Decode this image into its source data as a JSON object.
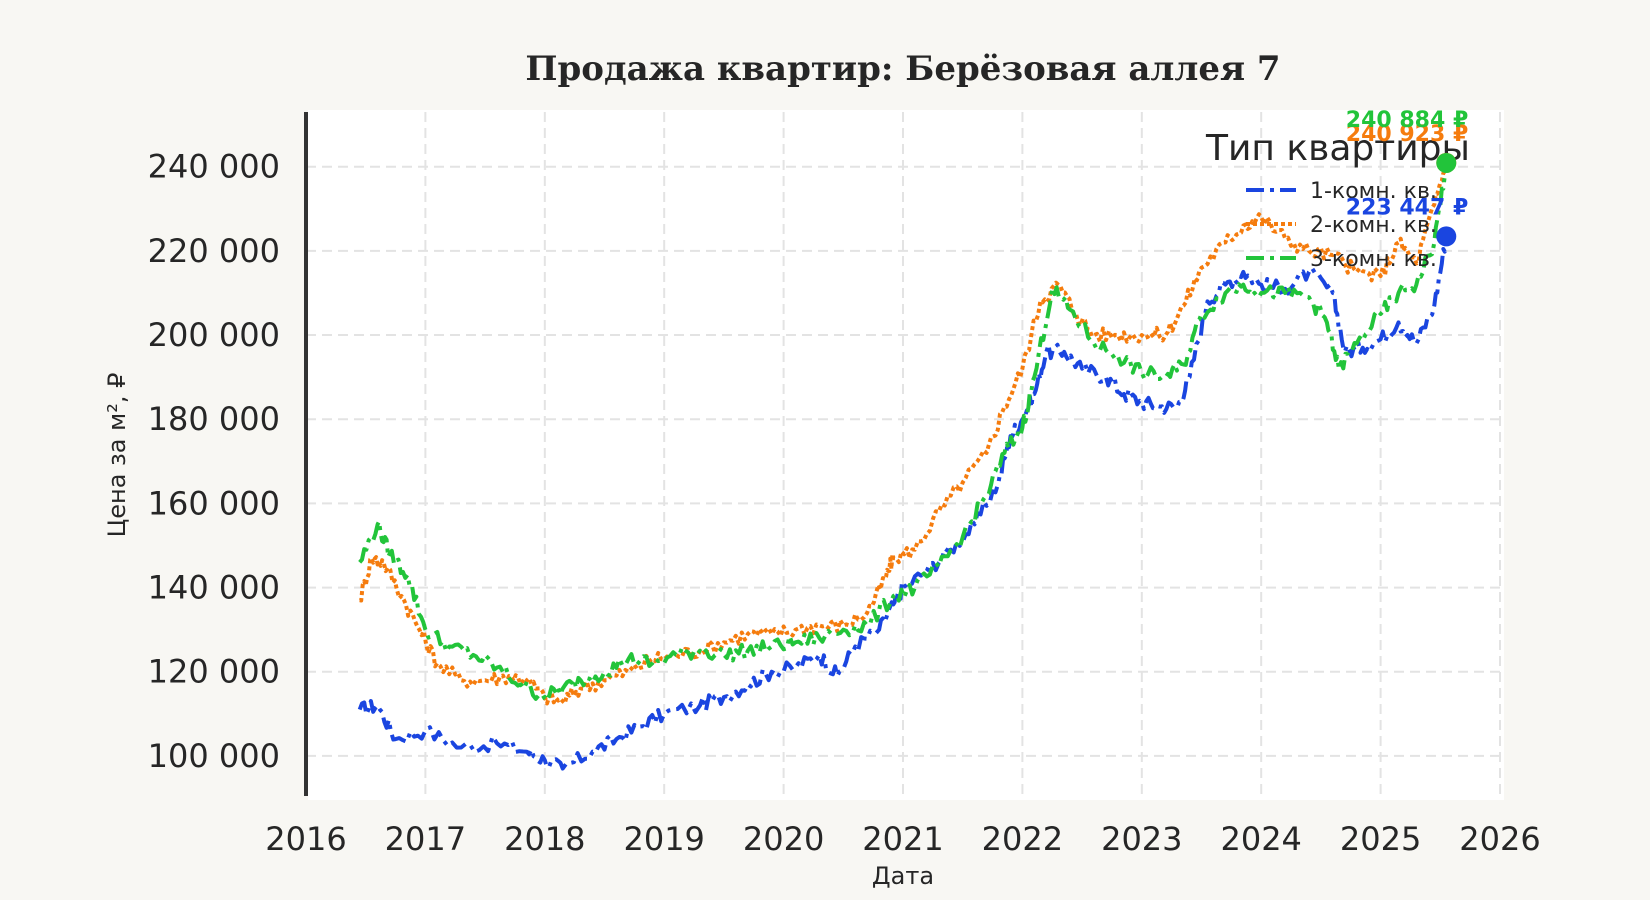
{
  "chart_data": {
    "type": "line",
    "title": "Продажа квартир: Берёзовая аллея 7",
    "xlabel": "Дата",
    "ylabel": "Цена за м², ₽",
    "xlim": [
      2016,
      2026
    ],
    "ylim": [
      90000,
      253000
    ],
    "x_ticks": [
      2016,
      2017,
      2018,
      2019,
      2020,
      2021,
      2022,
      2023,
      2024,
      2025,
      2026
    ],
    "y_ticks": [
      100000,
      120000,
      140000,
      160000,
      180000,
      200000,
      220000,
      240000
    ],
    "y_tick_labels": [
      "100 000",
      "120 000",
      "140 000",
      "160 000",
      "180 000",
      "200 000",
      "220 000",
      "240 000"
    ],
    "x_tick_labels": [
      "2016",
      "2017",
      "2018",
      "2019",
      "2020",
      "2021",
      "2022",
      "2023",
      "2024",
      "2025",
      "2026"
    ],
    "grid": true,
    "legend": {
      "title": "Тип квартиры",
      "position": "top-right"
    },
    "series": [
      {
        "name": "1-комн. кв.",
        "color": "#1a45e0",
        "dash": "dashdot",
        "end_label": "223 447 ₽",
        "points": [
          [
            2016.45,
            111000
          ],
          [
            2016.6,
            112000
          ],
          [
            2016.75,
            104000
          ],
          [
            2017.0,
            106000
          ],
          [
            2017.3,
            102000
          ],
          [
            2017.6,
            103000
          ],
          [
            2017.85,
            101000
          ],
          [
            2018.0,
            99000
          ],
          [
            2018.15,
            97000
          ],
          [
            2018.4,
            101000
          ],
          [
            2018.6,
            104000
          ],
          [
            2018.8,
            107000
          ],
          [
            2019.0,
            110000
          ],
          [
            2019.3,
            112000
          ],
          [
            2019.5,
            114000
          ],
          [
            2019.7,
            117000
          ],
          [
            2019.9,
            120000
          ],
          [
            2020.1,
            121000
          ],
          [
            2020.3,
            124000
          ],
          [
            2020.45,
            119000
          ],
          [
            2020.6,
            126000
          ],
          [
            2020.8,
            130000
          ],
          [
            2020.92,
            136000
          ],
          [
            2021.0,
            140000
          ],
          [
            2021.2,
            144000
          ],
          [
            2021.4,
            149000
          ],
          [
            2021.6,
            155000
          ],
          [
            2021.8,
            165000
          ],
          [
            2021.9,
            176000
          ],
          [
            2022.0,
            180000
          ],
          [
            2022.1,
            186000
          ],
          [
            2022.2,
            196000
          ],
          [
            2022.35,
            196000
          ],
          [
            2022.5,
            192000
          ],
          [
            2022.7,
            190000
          ],
          [
            2022.85,
            186000
          ],
          [
            2023.0,
            184000
          ],
          [
            2023.15,
            183000
          ],
          [
            2023.3,
            183000
          ],
          [
            2023.4,
            190000
          ],
          [
            2023.55,
            208000
          ],
          [
            2023.7,
            212000
          ],
          [
            2023.85,
            215000
          ],
          [
            2024.0,
            212000
          ],
          [
            2024.2,
            211000
          ],
          [
            2024.4,
            215000
          ],
          [
            2024.6,
            210000
          ],
          [
            2024.7,
            196000
          ],
          [
            2024.85,
            197000
          ],
          [
            2025.0,
            199000
          ],
          [
            2025.15,
            203000
          ],
          [
            2025.3,
            198000
          ],
          [
            2025.45,
            207000
          ],
          [
            2025.55,
            223447
          ]
        ]
      },
      {
        "name": "2-комн. кв.",
        "color": "#f57c0e",
        "dash": "dotted",
        "end_label": "240 923 ₽",
        "points": [
          [
            2016.45,
            137000
          ],
          [
            2016.55,
            147000
          ],
          [
            2016.65,
            146000
          ],
          [
            2016.8,
            138000
          ],
          [
            2016.95,
            130000
          ],
          [
            2017.1,
            122000
          ],
          [
            2017.3,
            118000
          ],
          [
            2017.5,
            118000
          ],
          [
            2017.7,
            119000
          ],
          [
            2017.85,
            118000
          ],
          [
            2018.0,
            114000
          ],
          [
            2018.15,
            113000
          ],
          [
            2018.3,
            116000
          ],
          [
            2018.5,
            118000
          ],
          [
            2018.7,
            120000
          ],
          [
            2018.9,
            123000
          ],
          [
            2019.1,
            124000
          ],
          [
            2019.3,
            125000
          ],
          [
            2019.5,
            127000
          ],
          [
            2019.7,
            129000
          ],
          [
            2019.9,
            129000
          ],
          [
            2020.1,
            130000
          ],
          [
            2020.3,
            131000
          ],
          [
            2020.5,
            131000
          ],
          [
            2020.7,
            134000
          ],
          [
            2020.85,
            142000
          ],
          [
            2020.92,
            147000
          ],
          [
            2021.1,
            149000
          ],
          [
            2021.3,
            158000
          ],
          [
            2021.5,
            165000
          ],
          [
            2021.7,
            172000
          ],
          [
            2021.85,
            183000
          ],
          [
            2022.0,
            192000
          ],
          [
            2022.15,
            208000
          ],
          [
            2022.3,
            212000
          ],
          [
            2022.45,
            205000
          ],
          [
            2022.6,
            200000
          ],
          [
            2022.8,
            200000
          ],
          [
            2023.0,
            200000
          ],
          [
            2023.2,
            200000
          ],
          [
            2023.35,
            207000
          ],
          [
            2023.5,
            216000
          ],
          [
            2023.7,
            222000
          ],
          [
            2023.85,
            226000
          ],
          [
            2024.0,
            228000
          ],
          [
            2024.2,
            223000
          ],
          [
            2024.4,
            220000
          ],
          [
            2024.6,
            219000
          ],
          [
            2024.8,
            215000
          ],
          [
            2025.0,
            214000
          ],
          [
            2025.15,
            222000
          ],
          [
            2025.3,
            217000
          ],
          [
            2025.45,
            231000
          ],
          [
            2025.55,
            240923
          ]
        ]
      },
      {
        "name": "3-комн. кв.",
        "color": "#22c43a",
        "dash": "dashdot",
        "end_label": "240 884 ₽",
        "points": [
          [
            2016.45,
            146000
          ],
          [
            2016.6,
            155000
          ],
          [
            2016.7,
            148000
          ],
          [
            2016.85,
            143000
          ],
          [
            2017.0,
            130000
          ],
          [
            2017.2,
            126000
          ],
          [
            2017.4,
            124000
          ],
          [
            2017.6,
            121000
          ],
          [
            2017.8,
            117000
          ],
          [
            2018.0,
            114000
          ],
          [
            2018.15,
            116000
          ],
          [
            2018.3,
            118000
          ],
          [
            2018.5,
            120000
          ],
          [
            2018.7,
            123000
          ],
          [
            2018.9,
            122000
          ],
          [
            2019.1,
            124000
          ],
          [
            2019.3,
            125000
          ],
          [
            2019.5,
            124000
          ],
          [
            2019.7,
            125000
          ],
          [
            2019.9,
            126000
          ],
          [
            2020.1,
            127000
          ],
          [
            2020.3,
            128000
          ],
          [
            2020.5,
            130000
          ],
          [
            2020.7,
            131000
          ],
          [
            2020.92,
            138000
          ],
          [
            2021.1,
            140000
          ],
          [
            2021.3,
            145000
          ],
          [
            2021.5,
            152000
          ],
          [
            2021.7,
            162000
          ],
          [
            2021.85,
            172000
          ],
          [
            2022.0,
            178000
          ],
          [
            2022.1,
            190000
          ],
          [
            2022.25,
            211000
          ],
          [
            2022.4,
            206000
          ],
          [
            2022.6,
            198000
          ],
          [
            2022.8,
            195000
          ],
          [
            2023.0,
            191000
          ],
          [
            2023.2,
            190000
          ],
          [
            2023.35,
            193000
          ],
          [
            2023.5,
            205000
          ],
          [
            2023.7,
            210000
          ],
          [
            2023.85,
            212000
          ],
          [
            2024.0,
            210000
          ],
          [
            2024.2,
            210000
          ],
          [
            2024.4,
            209000
          ],
          [
            2024.55,
            203000
          ],
          [
            2024.65,
            192000
          ],
          [
            2024.8,
            198000
          ],
          [
            2025.0,
            205000
          ],
          [
            2025.15,
            210000
          ],
          [
            2025.3,
            212000
          ],
          [
            2025.45,
            222000
          ],
          [
            2025.55,
            240884
          ]
        ]
      }
    ]
  }
}
